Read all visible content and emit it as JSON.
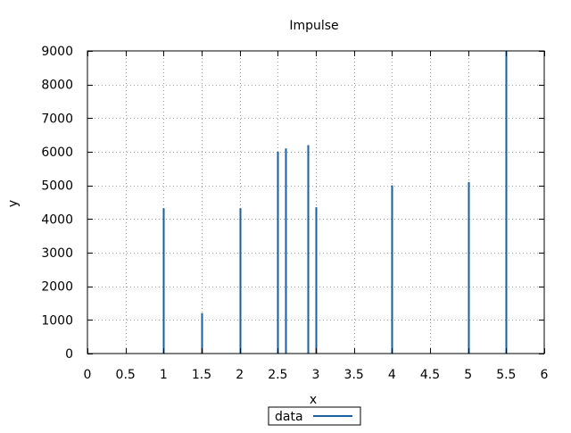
{
  "chart_data": {
    "type": "bar",
    "style": "impulse",
    "title": "Impulse",
    "xlabel": "x",
    "ylabel": "y",
    "xlim": [
      0,
      6
    ],
    "ylim": [
      0,
      9000
    ],
    "xticks": [
      0,
      0.5,
      1,
      1.5,
      2,
      2.5,
      3,
      3.5,
      4,
      4.5,
      5,
      5.5,
      6
    ],
    "xtick_labels": [
      "0",
      "0.5",
      "1",
      "1.5",
      "2",
      "2.5",
      "3",
      "3.5",
      "4",
      "4.5",
      "5",
      "5.5",
      "6"
    ],
    "yticks": [
      0,
      1000,
      2000,
      3000,
      4000,
      5000,
      6000,
      7000,
      8000,
      9000
    ],
    "ytick_labels": [
      "0",
      "1000",
      "2000",
      "3000",
      "4000",
      "5000",
      "6000",
      "7000",
      "8000",
      "9000"
    ],
    "grid": true,
    "legend_position": "bottom-center",
    "series": [
      {
        "name": "data",
        "color": "#1a5f9e",
        "x": [
          1,
          1.5,
          2,
          2.5,
          2.6,
          2.9,
          3,
          4,
          5,
          5.5
        ],
        "y": [
          4320,
          1200,
          4320,
          6000,
          6100,
          6200,
          4350,
          5000,
          5100,
          9000
        ]
      }
    ]
  }
}
